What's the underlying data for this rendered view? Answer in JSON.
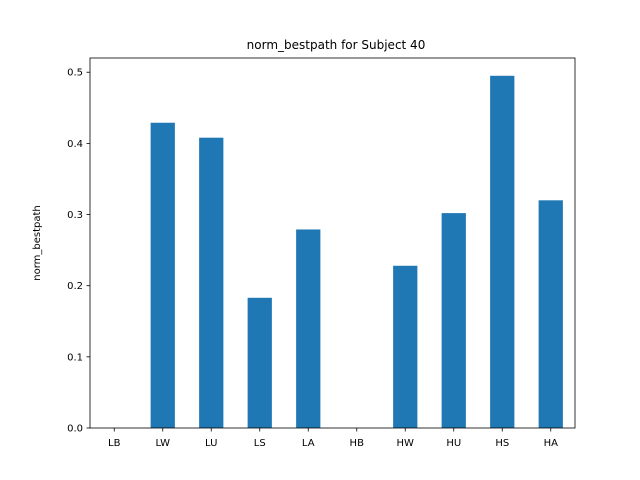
{
  "chart_data": {
    "type": "bar",
    "title": "norm_bestpath for Subject 40",
    "xlabel": "",
    "ylabel": "norm_bestpath",
    "categories": [
      "LB",
      "LW",
      "LU",
      "LS",
      "LA",
      "HB",
      "HW",
      "HU",
      "HS",
      "HA"
    ],
    "values": [
      0.0,
      0.429,
      0.408,
      0.183,
      0.279,
      0.0,
      0.228,
      0.302,
      0.495,
      0.32
    ],
    "ylim": [
      0,
      0.52
    ],
    "yticks": [
      0.0,
      0.1,
      0.2,
      0.3,
      0.4,
      0.5
    ],
    "ytick_labels": [
      "0.0",
      "0.1",
      "0.2",
      "0.3",
      "0.4",
      "0.5"
    ],
    "grid": false,
    "legend": "none",
    "bar_color": "#1f77b4"
  }
}
